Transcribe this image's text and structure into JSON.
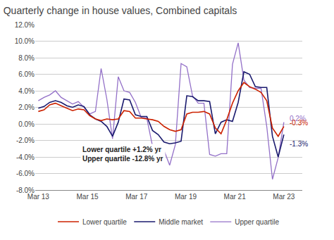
{
  "chart_data": {
    "type": "line",
    "title": "Quarterly change in house values, Combined capitals",
    "x": [
      0,
      0.930233,
      1.860465,
      2.790698,
      3.72093,
      4.651163,
      5.581395,
      6.511628,
      7.44186,
      8.372093,
      9.302326,
      10.232558,
      11.162791,
      12.093023,
      13.023256,
      13.953488,
      14.883721,
      15.813953,
      16.744186,
      17.674419,
      18.604651,
      19.534884,
      20.465116,
      21.395349,
      22.325581,
      23.255814,
      24.186047,
      25.116279,
      26.046512,
      26.976744,
      27.906977,
      28.837209,
      29.767442,
      30.697674,
      31.627907,
      32.55814,
      33.488372,
      34.418605,
      35.348837,
      36.27907,
      37.209302,
      38.139535,
      39.069767,
      40
    ],
    "series": [
      {
        "name": "Upper quartile",
        "color": "#9370C8",
        "values": [
          2.8,
          3.2,
          3.5,
          4.0,
          3.2,
          2.8,
          2.4,
          2.7,
          2.0,
          1.2,
          1.5,
          6.7,
          3.0,
          -1.8,
          5.7,
          4.0,
          3.8,
          2.6,
          0.8,
          0.7,
          -2.7,
          -2.9,
          -3.2,
          -5.0,
          -2.5,
          7.3,
          6.9,
          3.4,
          2.5,
          2.5,
          -3.7,
          -3.9,
          -3.6,
          -3.6,
          7.2,
          9.8,
          5.3,
          4.4,
          4.3,
          4.3,
          -0.3,
          -6.7,
          -4.1,
          0.2
        ]
      },
      {
        "name": "Middle market",
        "color": "#1a1a6e",
        "values": [
          1.9,
          2.1,
          2.6,
          2.8,
          2.6,
          2.2,
          2.0,
          2.3,
          2.1,
          1.1,
          0.6,
          0.3,
          -0.3,
          -1.5,
          0.2,
          3.0,
          2.9,
          1.1,
          0.9,
          0.9,
          -0.8,
          -1.3,
          -2.2,
          -2.4,
          -2.3,
          -2.1,
          3.4,
          3.3,
          2.8,
          2.8,
          2.7,
          -1.2,
          0.2,
          0.5,
          0.3,
          2.6,
          6.3,
          6.0,
          4.5,
          4.4,
          4.4,
          -1.5,
          -4.0,
          -1.3
        ]
      },
      {
        "name": "Lower quartile",
        "color": "#CC2200",
        "values": [
          1.5,
          1.7,
          2.3,
          2.5,
          2.2,
          1.9,
          1.6,
          1.8,
          1.7,
          1.0,
          0.6,
          0.4,
          0.6,
          0.5,
          0.6,
          1.6,
          1.5,
          0.7,
          0.7,
          0.6,
          0.5,
          0.3,
          -0.3,
          -0.7,
          -0.9,
          -0.7,
          1.2,
          1.4,
          1.4,
          1.5,
          1.2,
          -0.5,
          -1.2,
          0.5,
          2.5,
          4.0,
          5.0,
          4.5,
          4.2,
          3.8,
          2.8,
          -0.5,
          -1.5,
          -0.3
        ]
      }
    ],
    "xlim": [
      -0.5,
      43
    ],
    "xticks": [
      {
        "value": 0,
        "label": "Mar 13"
      },
      {
        "value": 8,
        "label": "Mar 15"
      },
      {
        "value": 16,
        "label": "Mar 17"
      },
      {
        "value": 24,
        "label": "Mar 19"
      },
      {
        "value": 32,
        "label": "Mar 21"
      },
      {
        "value": 40,
        "label": "Mar 23"
      }
    ],
    "ylim": [
      -8.0,
      12.0
    ],
    "yticks": [
      {
        "value": -8.0,
        "label": "-8.0%"
      },
      {
        "value": -6.0,
        "label": "-6.0%"
      },
      {
        "value": -4.0,
        "label": "-4.0%"
      },
      {
        "value": -2.0,
        "label": "-2.0%"
      },
      {
        "value": 0.0,
        "label": "0.0%"
      },
      {
        "value": 2.0,
        "label": "2.0%"
      },
      {
        "value": 4.0,
        "label": "4.0%"
      },
      {
        "value": 6.0,
        "label": "6.0%"
      },
      {
        "value": 8.0,
        "label": "8.0%"
      },
      {
        "value": 10.0,
        "label": "10.0%"
      },
      {
        "value": 12.0,
        "label": "12.0%"
      }
    ],
    "grid": "y",
    "legend": "bottom",
    "annotations": [
      {
        "text": "Lower quartile +1.2% yr\nUpper quartile -12.8% yr"
      },
      {
        "text": "0.2%",
        "series": "Upper quartile"
      },
      {
        "text": "-1.3%",
        "series": "Middle market"
      },
      {
        "text": "-0.3%",
        "series": "Lower quartile"
      }
    ]
  }
}
